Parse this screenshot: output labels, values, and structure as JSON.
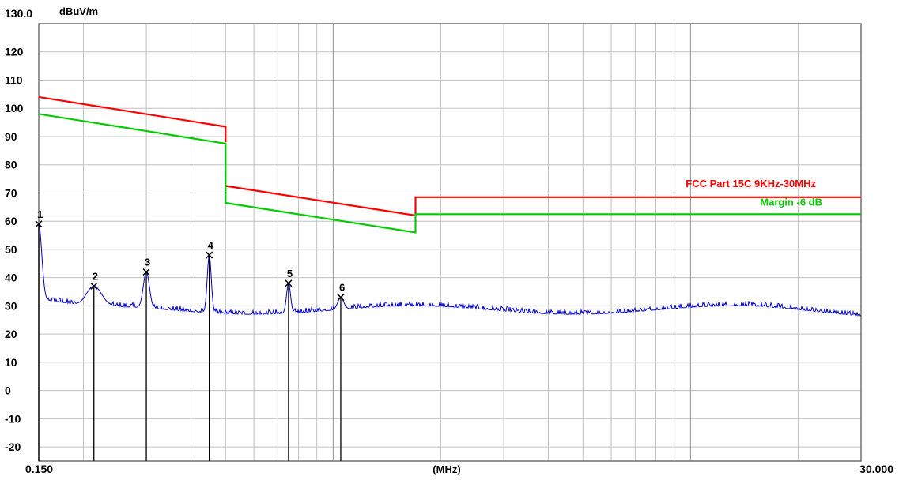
{
  "chart_data": {
    "type": "line",
    "title": "",
    "ylabel": "dBuV/m",
    "xlabel": "(MHz)",
    "x_scale": "log",
    "xlim": [
      0.15,
      30.0
    ],
    "ylim": [
      -25,
      130
    ],
    "x_tick_labels": [
      "0.150",
      "30.000"
    ],
    "y_top_label": "130.0",
    "y_ticks": [
      120,
      110,
      100,
      90,
      80,
      70,
      60,
      50,
      40,
      30,
      20,
      10,
      0,
      -10,
      -20
    ],
    "grid": true,
    "colors": {
      "limit": "#ff0000",
      "margin": "#00cc00",
      "trace": "#0000cc",
      "marker": "#000000",
      "grid": "#c0c0c0"
    },
    "series": [
      {
        "name": "FCC Part 15C 9KHz-30MHz",
        "color": "#ff0000",
        "segments": [
          [
            [
              0.15,
              104
            ],
            [
              0.5,
              93.5
            ],
            [
              0.5,
              88
            ]
          ],
          [
            [
              0.5,
              72.5
            ],
            [
              1.7,
              62
            ],
            [
              1.7,
              68.5
            ],
            [
              30.0,
              68.5
            ]
          ]
        ]
      },
      {
        "name": "Margin -6 dB",
        "color": "#00cc00",
        "segments": [
          [
            [
              0.15,
              98
            ],
            [
              0.5,
              87.5
            ],
            [
              0.5,
              66.5
            ],
            [
              1.7,
              56
            ],
            [
              1.7,
              62.5
            ],
            [
              30.0,
              62.5
            ]
          ]
        ]
      },
      {
        "name": "",
        "color": "#0000cc",
        "baseline": 28.5,
        "peaks": [
          {
            "x": 0.15,
            "y": 59,
            "w": 0.012
          },
          {
            "x": 0.214,
            "y": 37,
            "w": 0.03
          },
          {
            "x": 0.3,
            "y": 42,
            "w": 0.012
          },
          {
            "x": 0.45,
            "y": 48,
            "w": 0.008
          },
          {
            "x": 0.75,
            "y": 38,
            "w": 0.008
          },
          {
            "x": 1.05,
            "y": 33,
            "w": 0.012
          }
        ]
      }
    ],
    "markers": [
      {
        "label": "1",
        "x": 0.15,
        "y": 59
      },
      {
        "label": "2",
        "x": 0.214,
        "y": 37
      },
      {
        "label": "3",
        "x": 0.3,
        "y": 42
      },
      {
        "label": "4",
        "x": 0.45,
        "y": 48
      },
      {
        "label": "5",
        "x": 0.75,
        "y": 38
      },
      {
        "label": "6",
        "x": 1.05,
        "y": 33
      }
    ]
  }
}
